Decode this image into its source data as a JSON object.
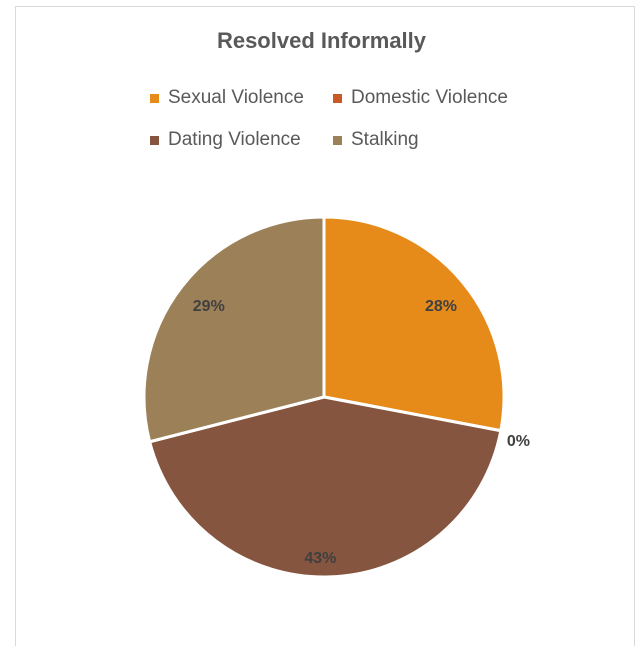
{
  "chart_data": {
    "type": "pie",
    "title": "Resolved Informally",
    "legend_position": "top",
    "slices": [
      {
        "name": "Sexual Violence",
        "value": 28,
        "label": "28%",
        "color": "#e68a1a"
      },
      {
        "name": "Domestic Violence",
        "value": 0,
        "label": "0%",
        "color": "#c95a26"
      },
      {
        "name": "Dating Violence",
        "value": 43,
        "label": "43%",
        "color": "#855540"
      },
      {
        "name": "Stalking",
        "value": 29,
        "label": "29%",
        "color": "#9c8158"
      }
    ]
  }
}
